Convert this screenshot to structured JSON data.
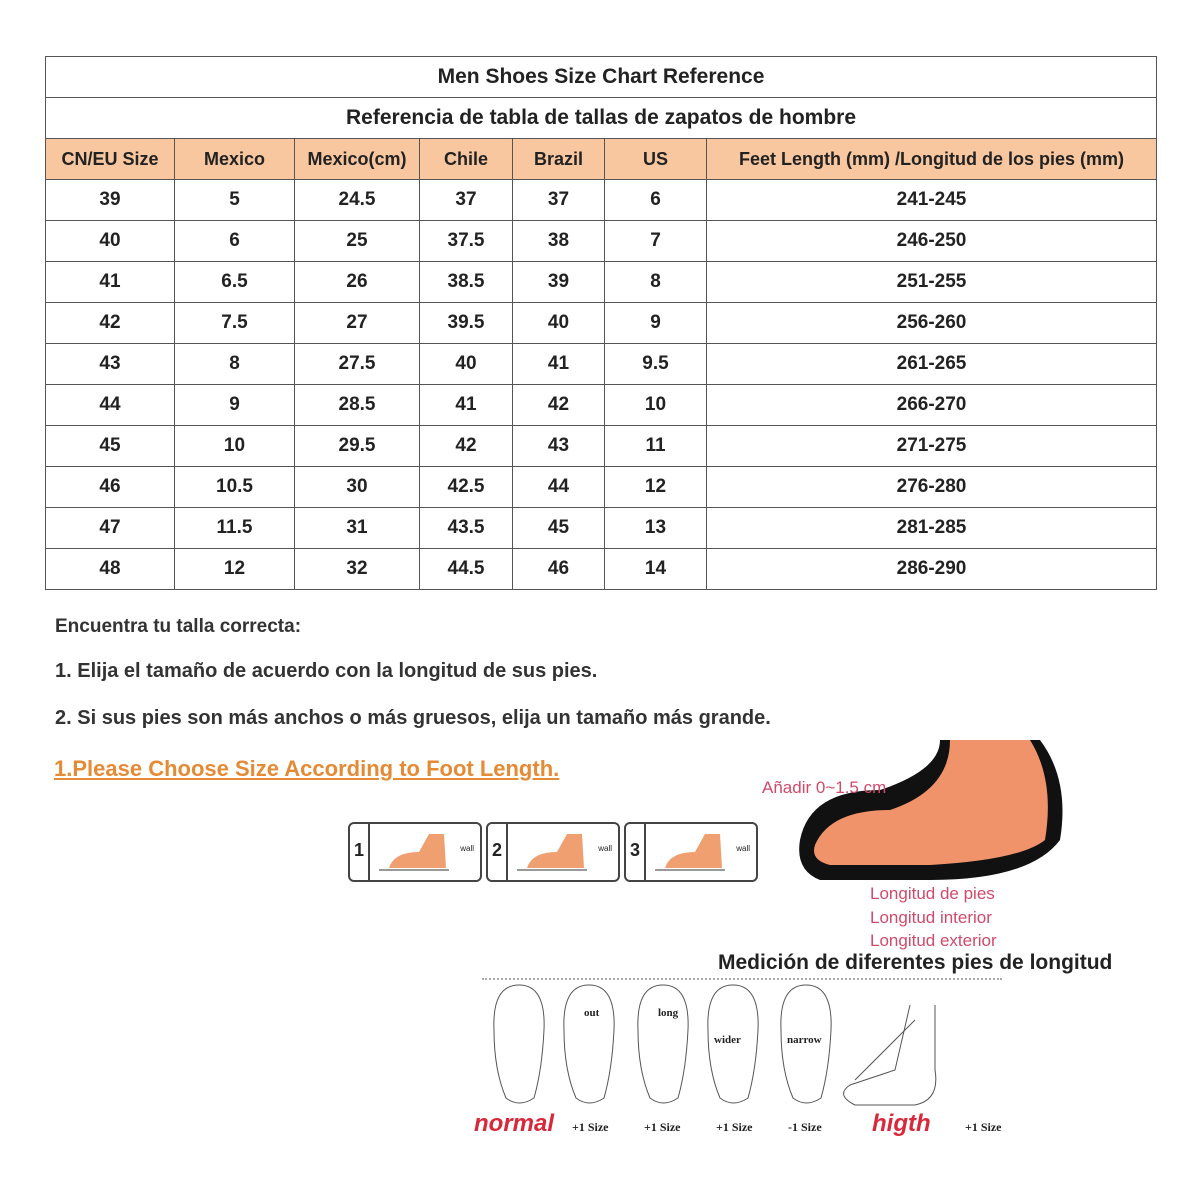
{
  "table": {
    "title": "Men Shoes Size Chart Reference",
    "subtitle": "Referencia de tabla de tallas de zapatos de hombre",
    "header_color": "#f8c7a0",
    "columns": [
      "CN/EU Size",
      "Mexico",
      "Mexico(cm)",
      "Chile",
      "Brazil",
      "US",
      "Feet Length (mm) /Longitud de los pies (mm)"
    ],
    "rows": [
      [
        "39",
        "5",
        "24.5",
        "37",
        "37",
        "6",
        "241-245"
      ],
      [
        "40",
        "6",
        "25",
        "37.5",
        "38",
        "7",
        "246-250"
      ],
      [
        "41",
        "6.5",
        "26",
        "38.5",
        "39",
        "8",
        "251-255"
      ],
      [
        "42",
        "7.5",
        "27",
        "39.5",
        "40",
        "9",
        "256-260"
      ],
      [
        "43",
        "8",
        "27.5",
        "40",
        "41",
        "9.5",
        "261-265"
      ],
      [
        "44",
        "9",
        "28.5",
        "41",
        "42",
        "10",
        "266-270"
      ],
      [
        "45",
        "10",
        "29.5",
        "42",
        "43",
        "11",
        "271-275"
      ],
      [
        "46",
        "10.5",
        "30",
        "42.5",
        "44",
        "12",
        "276-280"
      ],
      [
        "47",
        "11.5",
        "31",
        "43.5",
        "45",
        "13",
        "281-285"
      ],
      [
        "48",
        "12",
        "32",
        "44.5",
        "46",
        "14",
        "286-290"
      ]
    ]
  },
  "instructions": {
    "heading": "Encuentra tu talla correcta:",
    "step1": "1. Elija el tamaño de acuerdo con la longitud de sus pies.",
    "step2": "2. Si sus pies son más anchos o más gruesos, elija un tamaño más grande."
  },
  "choose_heading": "1.Please Choose Size According to Foot Length.",
  "measure_steps": [
    {
      "num": "1",
      "wall": "wall"
    },
    {
      "num": "2",
      "wall": "wall"
    },
    {
      "num": "3",
      "wall": "wall"
    }
  ],
  "shoe_diagram": {
    "add": "Añadir 0~1.5 cm",
    "foot_length": "Longitud de pies",
    "inner_length": "Longitud interior",
    "outer_length": "Longitud exterior"
  },
  "feet_section": {
    "title": "Medición de diferentes pies de longitud",
    "normal": "normal",
    "high": "higth",
    "types": [
      {
        "label": "out",
        "size": "+1 Size"
      },
      {
        "label": "long",
        "size": "+1 Size"
      },
      {
        "label": "wider",
        "size": "+1 Size"
      },
      {
        "label": "narrow",
        "size": "-1 Size"
      }
    ],
    "high_size": "+1 Size"
  }
}
